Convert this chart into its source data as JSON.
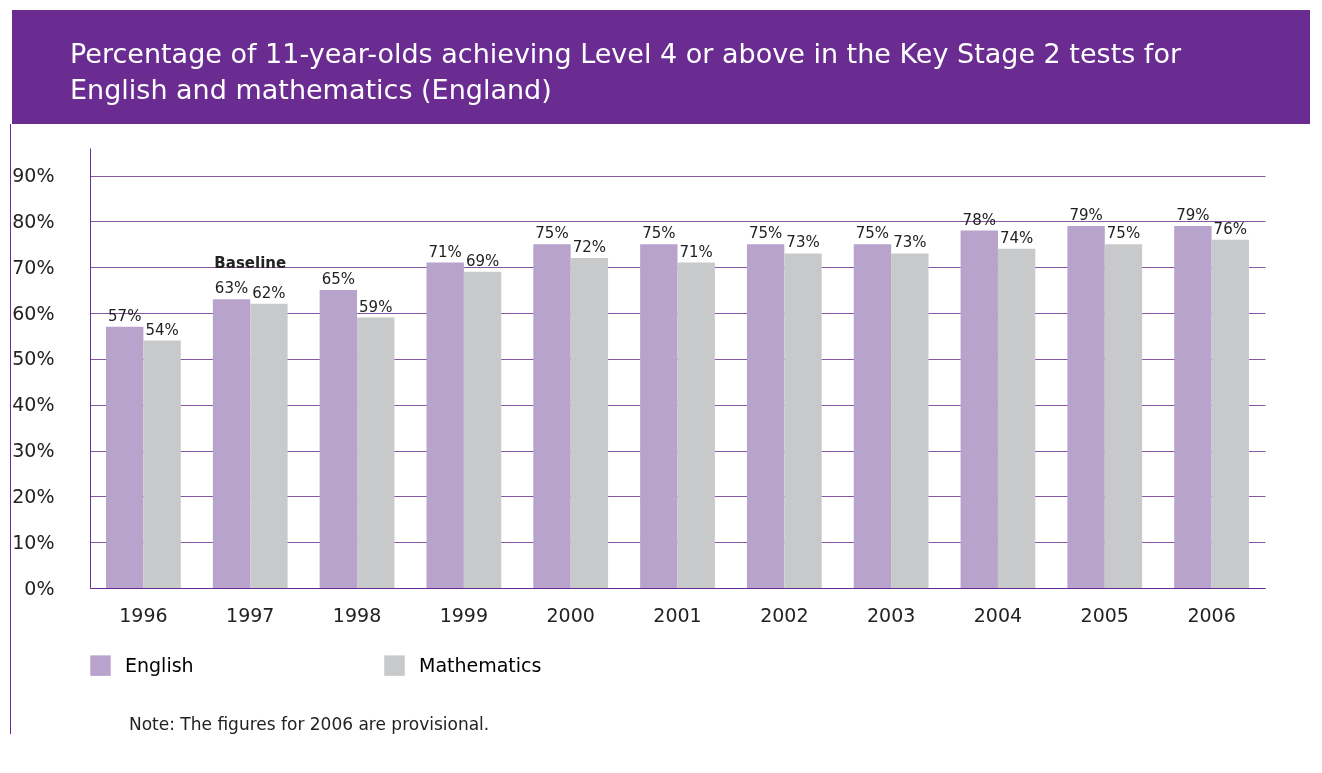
{
  "chart_data": {
    "type": "bar",
    "title": "Percentage of 11-year-olds achieving Level 4 or above in the Key Stage 2 tests for English and mathematics (England)",
    "categories": [
      "1996",
      "1997",
      "1998",
      "1999",
      "2000",
      "2001",
      "2002",
      "2003",
      "2004",
      "2005",
      "2006"
    ],
    "series": [
      {
        "name": "English",
        "color": "#b8a3cc",
        "values": [
          57,
          63,
          65,
          71,
          75,
          75,
          75,
          75,
          78,
          79,
          79
        ],
        "value_labels": [
          "57%",
          "63%",
          "65%",
          "71%",
          "75%",
          "75%",
          "75%",
          "75%",
          "78%",
          "79%",
          "79%"
        ]
      },
      {
        "name": "Mathematics",
        "color": "#c8c9cb",
        "values": [
          54,
          62,
          59,
          69,
          72,
          71,
          73,
          73,
          74,
          75,
          76
        ],
        "value_labels": [
          "54%",
          "62%",
          "59%",
          "69%",
          "72%",
          "71%",
          "73%",
          "73%",
          "74%",
          "75%",
          "76%"
        ]
      }
    ],
    "ylim": [
      0,
      96
    ],
    "yticks": [
      {
        "value": 0,
        "label": "0%"
      },
      {
        "value": 10,
        "label": "10%"
      },
      {
        "value": 20,
        "label": "20%"
      },
      {
        "value": 30,
        "label": "30%"
      },
      {
        "value": 40,
        "label": "40%"
      },
      {
        "value": 50,
        "label": "50%"
      },
      {
        "value": 60,
        "label": "60%"
      },
      {
        "value": 70,
        "label": "70%"
      },
      {
        "value": 80,
        "label": "80%"
      },
      {
        "value": 90,
        "label": "90%"
      }
    ],
    "grid": "y",
    "legend": "bottom",
    "annotations": [
      {
        "text": "Baseline",
        "x": "1997",
        "y": 63
      },
      "Note: The figures for 2006 are provisional."
    ]
  }
}
